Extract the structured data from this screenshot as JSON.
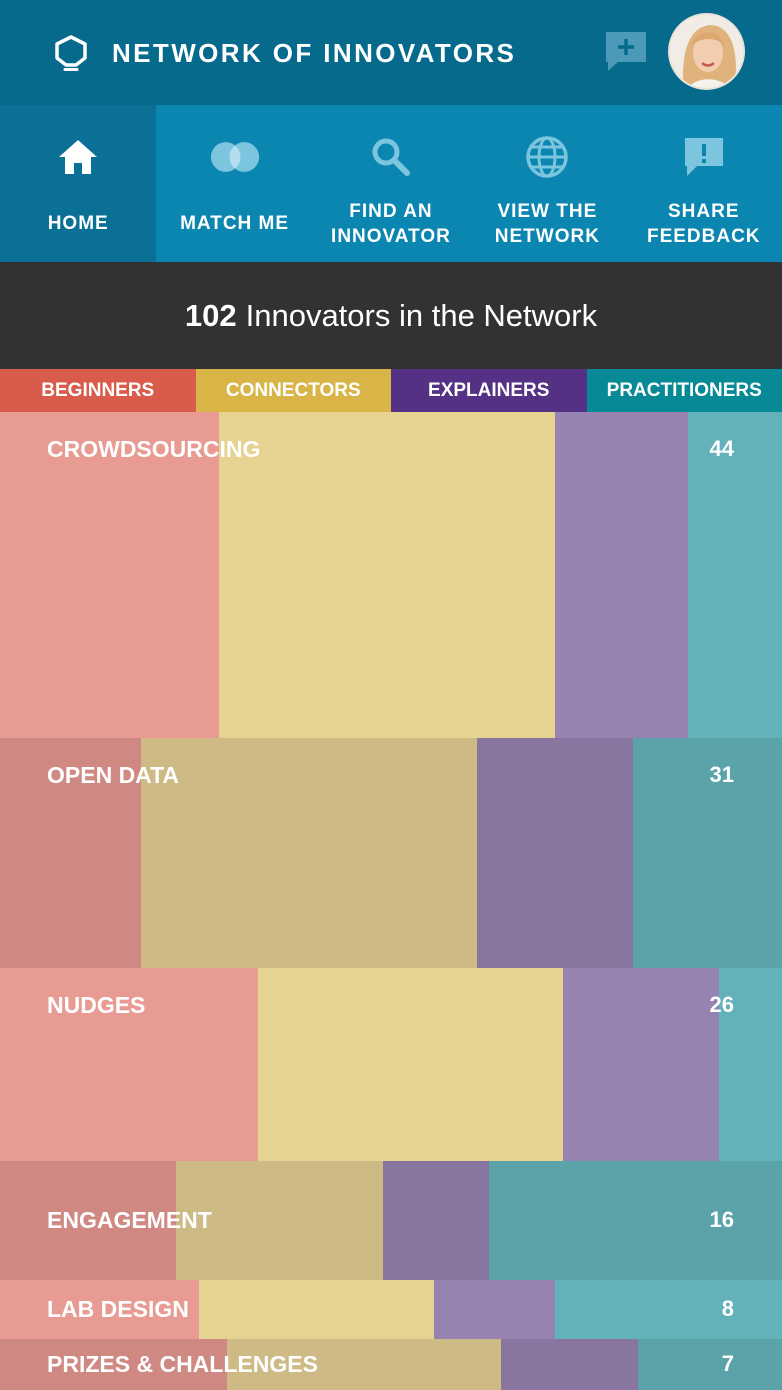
{
  "app": {
    "title": "NETWORK OF INNOVATORS"
  },
  "icons": {
    "logo": "hexagon-bulb-icon",
    "compose": "chat-plus-icon"
  },
  "nav": [
    {
      "label": "HOME",
      "icon": "home-icon",
      "active": true
    },
    {
      "label": "MATCH ME",
      "icon": "overlap-circles-icon",
      "active": false
    },
    {
      "label": "FIND AN\nINNOVATOR",
      "icon": "search-icon",
      "active": false
    },
    {
      "label": "VIEW THE\nNETWORK",
      "icon": "globe-icon",
      "active": false
    },
    {
      "label": "SHARE\nFEEDBACK",
      "icon": "feedback-icon",
      "active": false
    }
  ],
  "banner": {
    "count": "102",
    "text": "Innovators in the Network"
  },
  "legend": [
    {
      "label": "BEGINNERS",
      "color": "#d95b4b"
    },
    {
      "label": "CONNECTORS",
      "color": "#d9b548"
    },
    {
      "label": "EXPLAINERS",
      "color": "#553186"
    },
    {
      "label": "PRACTITIONERS",
      "color": "#088996"
    }
  ],
  "chart_data": {
    "type": "stacked-bar",
    "series_colors": {
      "light": [
        "#e89b92",
        "#e6d291",
        "#9683b1",
        "#63b2ba"
      ],
      "dark": [
        "#cf8982",
        "#ceba84",
        "#8875a0",
        "#5aa3a8"
      ]
    },
    "rows": [
      {
        "label": "CROWDSOURCING",
        "count": "44",
        "shares": [
          0.28,
          0.43,
          0.17,
          0.12
        ]
      },
      {
        "label": "OPEN DATA",
        "count": "31",
        "shares": [
          0.18,
          0.43,
          0.2,
          0.19
        ]
      },
      {
        "label": "NUDGES",
        "count": "26",
        "shares": [
          0.33,
          0.39,
          0.2,
          0.08
        ]
      },
      {
        "label": "ENGAGEMENT",
        "count": "16",
        "shares": [
          0.225,
          0.265,
          0.135,
          0.375
        ]
      },
      {
        "label": "LAB DESIGN",
        "count": "8",
        "shares": [
          0.255,
          0.3,
          0.155,
          0.29
        ]
      },
      {
        "label": "PRIZES & CHALLENGES",
        "count": "7",
        "shares": [
          0.29,
          0.35,
          0.175,
          0.185
        ]
      }
    ]
  }
}
